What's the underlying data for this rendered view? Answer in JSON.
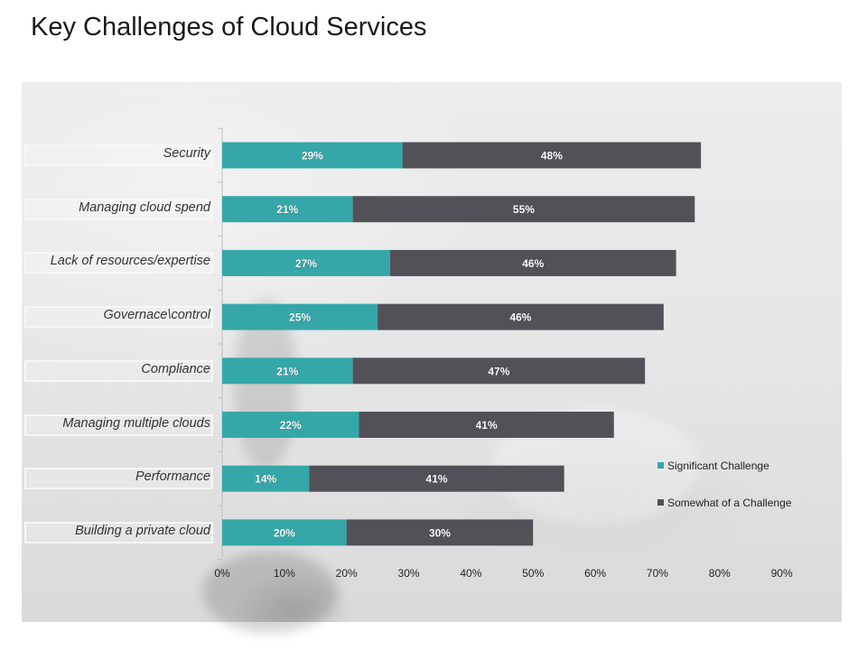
{
  "slide": {
    "title": "Key Challenges of Cloud Services"
  },
  "colors": {
    "significant": "#35a7a8",
    "somewhat": "#525158",
    "axis": "#bfbfbf",
    "tick_text": "#222222"
  },
  "chart_data": {
    "type": "bar",
    "orientation": "horizontal",
    "stacked": true,
    "title": "Key Challenges of Cloud Services",
    "categories": [
      "Security",
      "Managing cloud spend",
      "Lack of resources/expertise",
      "Governace\\control",
      "Compliance",
      "Managing multiple clouds",
      "Performance",
      "Building a private cloud"
    ],
    "series": [
      {
        "name": "Significant Challenge",
        "values": [
          29,
          21,
          27,
          25,
          21,
          22,
          14,
          20
        ]
      },
      {
        "name": "Somewhat of a Challenge",
        "values": [
          48,
          55,
          46,
          46,
          47,
          41,
          41,
          30
        ]
      }
    ],
    "value_suffix": "%",
    "xlim": [
      0,
      90
    ],
    "x_ticks": [
      "0%",
      "10%",
      "20%",
      "30%",
      "40%",
      "50%",
      "60%",
      "70%",
      "80%",
      "90%"
    ],
    "xlabel": "",
    "ylabel": "",
    "grid": false,
    "legend_position": "bottom-right"
  }
}
